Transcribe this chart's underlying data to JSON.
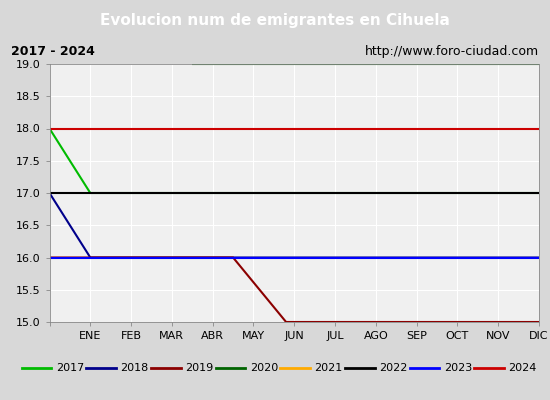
{
  "title": "Evolucion num de emigrantes en Cihuela",
  "subtitle_left": "2017 - 2024",
  "subtitle_right": "http://www.foro-ciudad.com",
  "xlim": [
    0,
    12
  ],
  "ylim": [
    15.0,
    19.0
  ],
  "yticks": [
    15.0,
    15.5,
    16.0,
    16.5,
    17.0,
    17.5,
    18.0,
    18.5,
    19.0
  ],
  "xtick_labels": [
    "",
    "ENE",
    "FEB",
    "MAR",
    "ABR",
    "MAY",
    "JUN",
    "JUL",
    "AGO",
    "SEP",
    "OCT",
    "NOV",
    "DIC"
  ],
  "series": {
    "2017": {
      "color": "#00bb00",
      "x": [
        0,
        1,
        12
      ],
      "y": [
        18,
        17,
        17
      ]
    },
    "2018": {
      "color": "#00008b",
      "x": [
        0,
        1,
        12
      ],
      "y": [
        17,
        16,
        16
      ]
    },
    "2019": {
      "color": "#8b0000",
      "x": [
        0,
        4.5,
        5.8,
        12
      ],
      "y": [
        16,
        16,
        15,
        15
      ]
    },
    "2020": {
      "color": "#006400",
      "x": [
        3.5,
        12
      ],
      "y": [
        19,
        19
      ]
    },
    "2021": {
      "color": "#ffaa00",
      "x": [],
      "y": []
    },
    "2022": {
      "color": "#000000",
      "x": [
        0,
        12
      ],
      "y": [
        17,
        17
      ]
    },
    "2023": {
      "color": "#0000ff",
      "x": [
        0,
        12
      ],
      "y": [
        16,
        16
      ]
    },
    "2024": {
      "color": "#cc0000",
      "x": [
        0,
        12
      ],
      "y": [
        18,
        18
      ]
    }
  },
  "title_bg_color": "#5b8dd9",
  "title_color": "#ffffff",
  "plot_bg_color": "#f0f0f0",
  "outer_bg_color": "#d8d8d8",
  "grid_color": "#ffffff",
  "subtitle_box_bg": "#f8f8f8",
  "subtitle_box_edge": "#aaaaaa",
  "linewidth": 1.5
}
